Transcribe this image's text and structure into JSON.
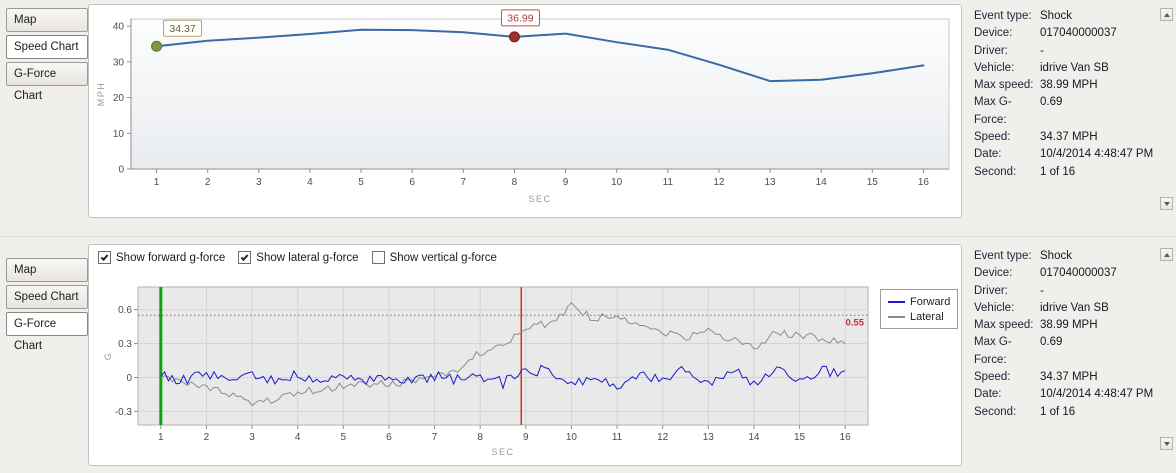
{
  "tabs": [
    "Map",
    "Speed Chart",
    "G-Force Chart"
  ],
  "panels": {
    "top": {
      "active_tab_index": 1
    },
    "bottom": {
      "active_tab_index": 2
    }
  },
  "event_details": {
    "rows": [
      {
        "label": "Event type:",
        "value": "Shock"
      },
      {
        "label": "Device:",
        "value": "017040000037"
      },
      {
        "label": "Driver:",
        "value": "-"
      },
      {
        "label": "Vehicle:",
        "value": "idrive Van SB"
      },
      {
        "label": "Max speed:",
        "value": "38.99 MPH"
      },
      {
        "label": "Max G-Force:",
        "value": "0.69"
      },
      {
        "label": "Speed:",
        "value": "34.37 MPH"
      },
      {
        "label": "Date:",
        "value": "10/4/2014 4:48:47 PM"
      },
      {
        "label": "Second:",
        "value": "1 of 16"
      }
    ]
  },
  "gforce_toggles": [
    {
      "label": "Show forward g-force",
      "checked": true
    },
    {
      "label": "Show lateral g-force",
      "checked": true
    },
    {
      "label": "Show vertical g-force",
      "checked": false
    }
  ],
  "chart_data": [
    {
      "id": "speed",
      "type": "line",
      "xlabel": "SEC",
      "ylabel": "MPH",
      "xlim": [
        0.5,
        16.5
      ],
      "ylim": [
        0,
        42
      ],
      "xticks": [
        1,
        2,
        3,
        4,
        5,
        6,
        7,
        8,
        9,
        10,
        11,
        12,
        13,
        14,
        15,
        16
      ],
      "yticks": [
        0,
        10,
        20,
        30,
        40
      ],
      "grid": false,
      "x": [
        1,
        2,
        3,
        4,
        5,
        6,
        7,
        8,
        9,
        10,
        11,
        12,
        13,
        14,
        15,
        16
      ],
      "series": [
        {
          "name": "Speed (MPH)",
          "color": "#3a6aa4",
          "values": [
            34.37,
            35.9,
            36.8,
            37.8,
            38.99,
            38.9,
            38.3,
            36.99,
            37.9,
            35.5,
            33.4,
            29.2,
            24.6,
            25.0,
            26.8,
            29.0
          ]
        }
      ],
      "markers": [
        {
          "x": 1,
          "y": 34.37,
          "label": "34.37",
          "dot_color": "#7d9b3f",
          "dot_edge": "#5c7430",
          "box_fill": "#fffef8",
          "box_border": "#b3a573",
          "text_color": "#5d5d52",
          "placement": "right-up"
        },
        {
          "x": 8,
          "y": 36.99,
          "label": "36.99",
          "dot_color": "#9c2f2f",
          "dot_edge": "#7a1f1f",
          "box_fill": "#ffffff",
          "box_border": "#c0504d",
          "text_color": "#b03a3a",
          "placement": "above"
        }
      ]
    },
    {
      "id": "gforce",
      "type": "line",
      "xlabel": "SEC",
      "ylabel": "G",
      "xlim": [
        0.5,
        16.5
      ],
      "ylim": [
        -0.42,
        0.8
      ],
      "xticks": [
        1,
        2,
        3,
        4,
        5,
        6,
        7,
        8,
        9,
        10,
        11,
        12,
        13,
        14,
        15,
        16
      ],
      "yticks": [
        -0.3,
        0,
        0.3,
        0.6
      ],
      "grid": true,
      "base_x_start": 1,
      "base_x_step": 0.5,
      "series": [
        {
          "name": "Forward",
          "color": "#1a1acc",
          "noise": 0.05,
          "base": [
            0.02,
            -0.03,
            0.03,
            -0.04,
            0.02,
            -0.03,
            0.02,
            -0.02,
            0.03,
            -0.02,
            0.02,
            -0.03,
            0.01,
            -0.02,
            0.02,
            -0.05,
            0.04,
            0.07,
            -0.07,
            0.03,
            -0.09,
            0.05,
            -0.03,
            0.07,
            -0.07,
            0.09,
            -0.05,
            0.07,
            -0.02,
            0.05,
            0.06
          ]
        },
        {
          "name": "Lateral",
          "color": "#8c8c8c",
          "noise": 0.035,
          "base": [
            0.0,
            -0.04,
            -0.09,
            -0.14,
            -0.22,
            -0.19,
            -0.13,
            -0.1,
            -0.08,
            -0.06,
            -0.06,
            -0.03,
            0.0,
            0.08,
            0.22,
            0.3,
            0.44,
            0.48,
            0.63,
            0.52,
            0.55,
            0.46,
            0.4,
            0.34,
            0.42,
            0.34,
            0.25,
            0.4,
            0.38,
            0.34,
            0.3
          ]
        }
      ],
      "threshold": {
        "y": 0.55,
        "label": "0.55",
        "line_color": "#d04545",
        "label_color": "#c03535"
      },
      "vlines": [
        {
          "name": "event-start-line",
          "x": 1,
          "color": "#10a010",
          "width": 3
        },
        {
          "name": "shock-moment-line",
          "x": 8.9,
          "color": "#d93025",
          "width": 1.5
        }
      ],
      "legend": {
        "position": "right",
        "entries": [
          {
            "label": "Forward",
            "color": "#1a1acc"
          },
          {
            "label": "Lateral",
            "color": "#8c8c8c"
          }
        ]
      }
    }
  ]
}
